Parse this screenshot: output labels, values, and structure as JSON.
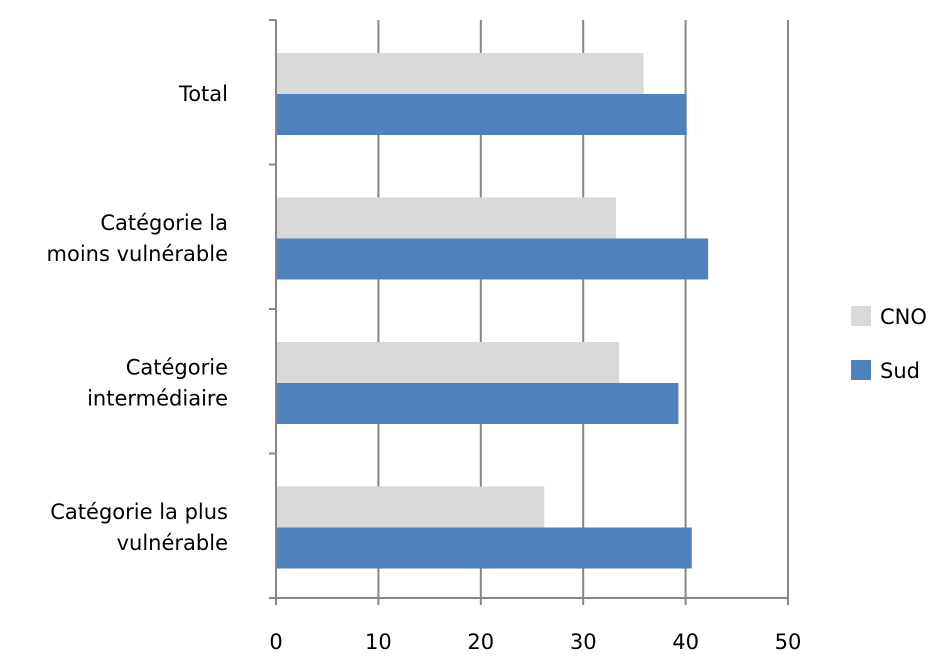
{
  "chart_data": {
    "type": "bar",
    "orientation": "horizontal",
    "categories": [
      [
        "Total"
      ],
      [
        "Catégorie la",
        "moins vulnérable"
      ],
      [
        "Catégorie",
        "intermédiaire"
      ],
      [
        "Catégorie la plus",
        "vulnérable"
      ]
    ],
    "series": [
      {
        "name": "CNO",
        "color": "#d9d9d9",
        "values": [
          35.9,
          33.2,
          33.5,
          26.2
        ]
      },
      {
        "name": "Sud",
        "color": "#4f81bd",
        "values": [
          40.1,
          42.2,
          39.3,
          40.6
        ]
      }
    ],
    "xlim": [
      0,
      50
    ],
    "xticks": [
      0,
      10,
      20,
      30,
      40,
      50
    ],
    "grid": true,
    "legend_position": "right",
    "gridline_color": "#868686"
  }
}
